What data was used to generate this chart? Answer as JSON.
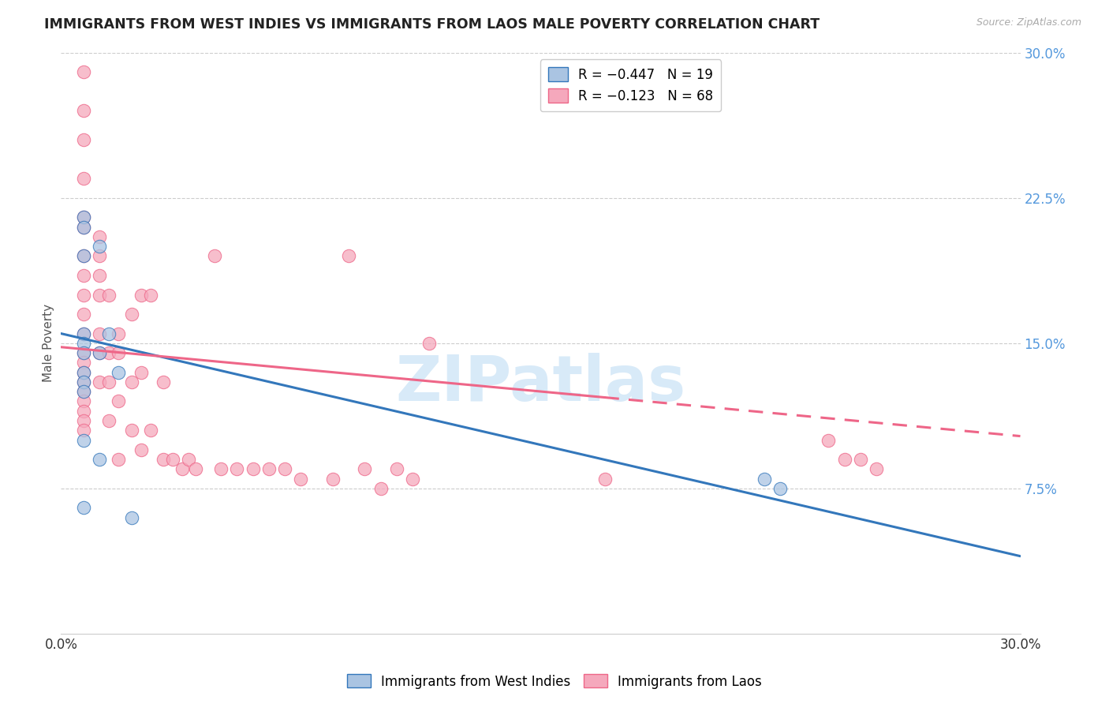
{
  "title": "IMMIGRANTS FROM WEST INDIES VS IMMIGRANTS FROM LAOS MALE POVERTY CORRELATION CHART",
  "source": "Source: ZipAtlas.com",
  "ylabel": "Male Poverty",
  "xlim": [
    0.0,
    0.3
  ],
  "ylim": [
    0.0,
    0.3
  ],
  "x_ticks": [
    0.0,
    0.3
  ],
  "x_tick_labels": [
    "0.0%",
    "30.0%"
  ],
  "y_ticks_right": [
    0.075,
    0.15,
    0.225,
    0.3
  ],
  "y_tick_labels_right": [
    "7.5%",
    "15.0%",
    "22.5%",
    "30.0%"
  ],
  "legend_entry1": "R = −0.447   N = 19",
  "legend_entry2": "R = −0.123   N = 68",
  "color_blue": "#aac4e2",
  "color_pink": "#f5a8bc",
  "line_color_blue": "#3377bb",
  "line_color_pink": "#ee6688",
  "watermark": "ZIPatlas",
  "west_indies_x": [
    0.007,
    0.007,
    0.007,
    0.007,
    0.007,
    0.007,
    0.007,
    0.007,
    0.007,
    0.007,
    0.007,
    0.012,
    0.012,
    0.012,
    0.015,
    0.018,
    0.022,
    0.22,
    0.225
  ],
  "west_indies_y": [
    0.215,
    0.21,
    0.195,
    0.155,
    0.15,
    0.145,
    0.135,
    0.13,
    0.125,
    0.1,
    0.065,
    0.2,
    0.145,
    0.09,
    0.155,
    0.135,
    0.06,
    0.08,
    0.075
  ],
  "laos_x": [
    0.007,
    0.007,
    0.007,
    0.007,
    0.007,
    0.007,
    0.007,
    0.007,
    0.007,
    0.007,
    0.007,
    0.007,
    0.007,
    0.007,
    0.007,
    0.007,
    0.007,
    0.007,
    0.007,
    0.007,
    0.012,
    0.012,
    0.012,
    0.012,
    0.012,
    0.012,
    0.012,
    0.015,
    0.015,
    0.015,
    0.015,
    0.018,
    0.018,
    0.018,
    0.018,
    0.022,
    0.022,
    0.022,
    0.025,
    0.025,
    0.025,
    0.028,
    0.028,
    0.032,
    0.032,
    0.035,
    0.038,
    0.04,
    0.042,
    0.048,
    0.05,
    0.055,
    0.06,
    0.065,
    0.07,
    0.075,
    0.085,
    0.09,
    0.095,
    0.1,
    0.105,
    0.11,
    0.115,
    0.17,
    0.24,
    0.245,
    0.25,
    0.255
  ],
  "laos_y": [
    0.29,
    0.27,
    0.255,
    0.235,
    0.215,
    0.21,
    0.195,
    0.185,
    0.175,
    0.165,
    0.155,
    0.145,
    0.14,
    0.135,
    0.13,
    0.125,
    0.12,
    0.115,
    0.11,
    0.105,
    0.205,
    0.195,
    0.185,
    0.175,
    0.155,
    0.145,
    0.13,
    0.175,
    0.145,
    0.13,
    0.11,
    0.155,
    0.145,
    0.12,
    0.09,
    0.165,
    0.13,
    0.105,
    0.175,
    0.135,
    0.095,
    0.175,
    0.105,
    0.13,
    0.09,
    0.09,
    0.085,
    0.09,
    0.085,
    0.195,
    0.085,
    0.085,
    0.085,
    0.085,
    0.085,
    0.08,
    0.08,
    0.195,
    0.085,
    0.075,
    0.085,
    0.08,
    0.15,
    0.08,
    0.1,
    0.09,
    0.09,
    0.085
  ],
  "wi_trend_x0": 0.0,
  "wi_trend_y0": 0.155,
  "wi_trend_x1": 0.3,
  "wi_trend_y1": 0.04,
  "laos_trend_x0": 0.0,
  "laos_trend_y0": 0.148,
  "laos_trend_x1_solid": 0.17,
  "laos_trend_y1_solid": 0.122,
  "laos_trend_x1_dash": 0.3,
  "laos_trend_y1_dash": 0.102
}
